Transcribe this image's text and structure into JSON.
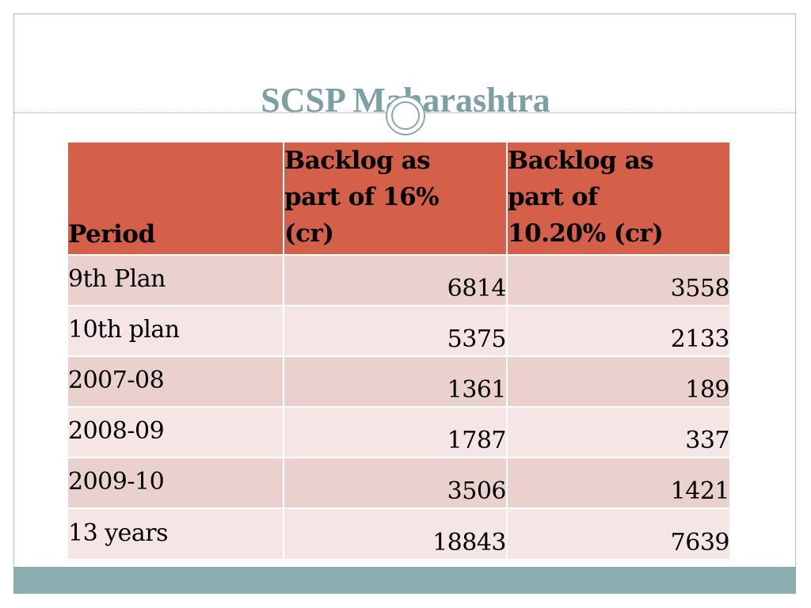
{
  "slide": {
    "title": "SCSP Maharashtra"
  },
  "table": {
    "headers": [
      "Period",
      "Backlog as part of 16% (cr)",
      "Backlog as part of 10.20% (cr)"
    ],
    "header_lines": {
      "col2": [
        "Backlog as",
        "part of 16%",
        "(cr)"
      ],
      "col3": [
        "Backlog as",
        "part of",
        "10.20% (cr)"
      ]
    },
    "rows": [
      {
        "period": "9th Plan",
        "backlog_16": "6814",
        "backlog_1020": "3558"
      },
      {
        "period": "10th plan",
        "backlog_16": "5375",
        "backlog_1020": "2133"
      },
      {
        "period": "2007-08",
        "backlog_16": "1361",
        "backlog_1020": "189"
      },
      {
        "period": "2008-09",
        "backlog_16": "1787",
        "backlog_1020": "337"
      },
      {
        "period": "2009-10",
        "backlog_16": "3506",
        "backlog_1020": "1421"
      },
      {
        "period": "13 years",
        "backlog_16": "18843",
        "backlog_1020": "7639"
      }
    ]
  },
  "colors": {
    "title": "#7ba0a3",
    "header_bg": "#d5604a",
    "row_odd": "#ebd1cd",
    "row_even": "#f5e6e5",
    "bottom_bar": "#8aaeb0"
  }
}
